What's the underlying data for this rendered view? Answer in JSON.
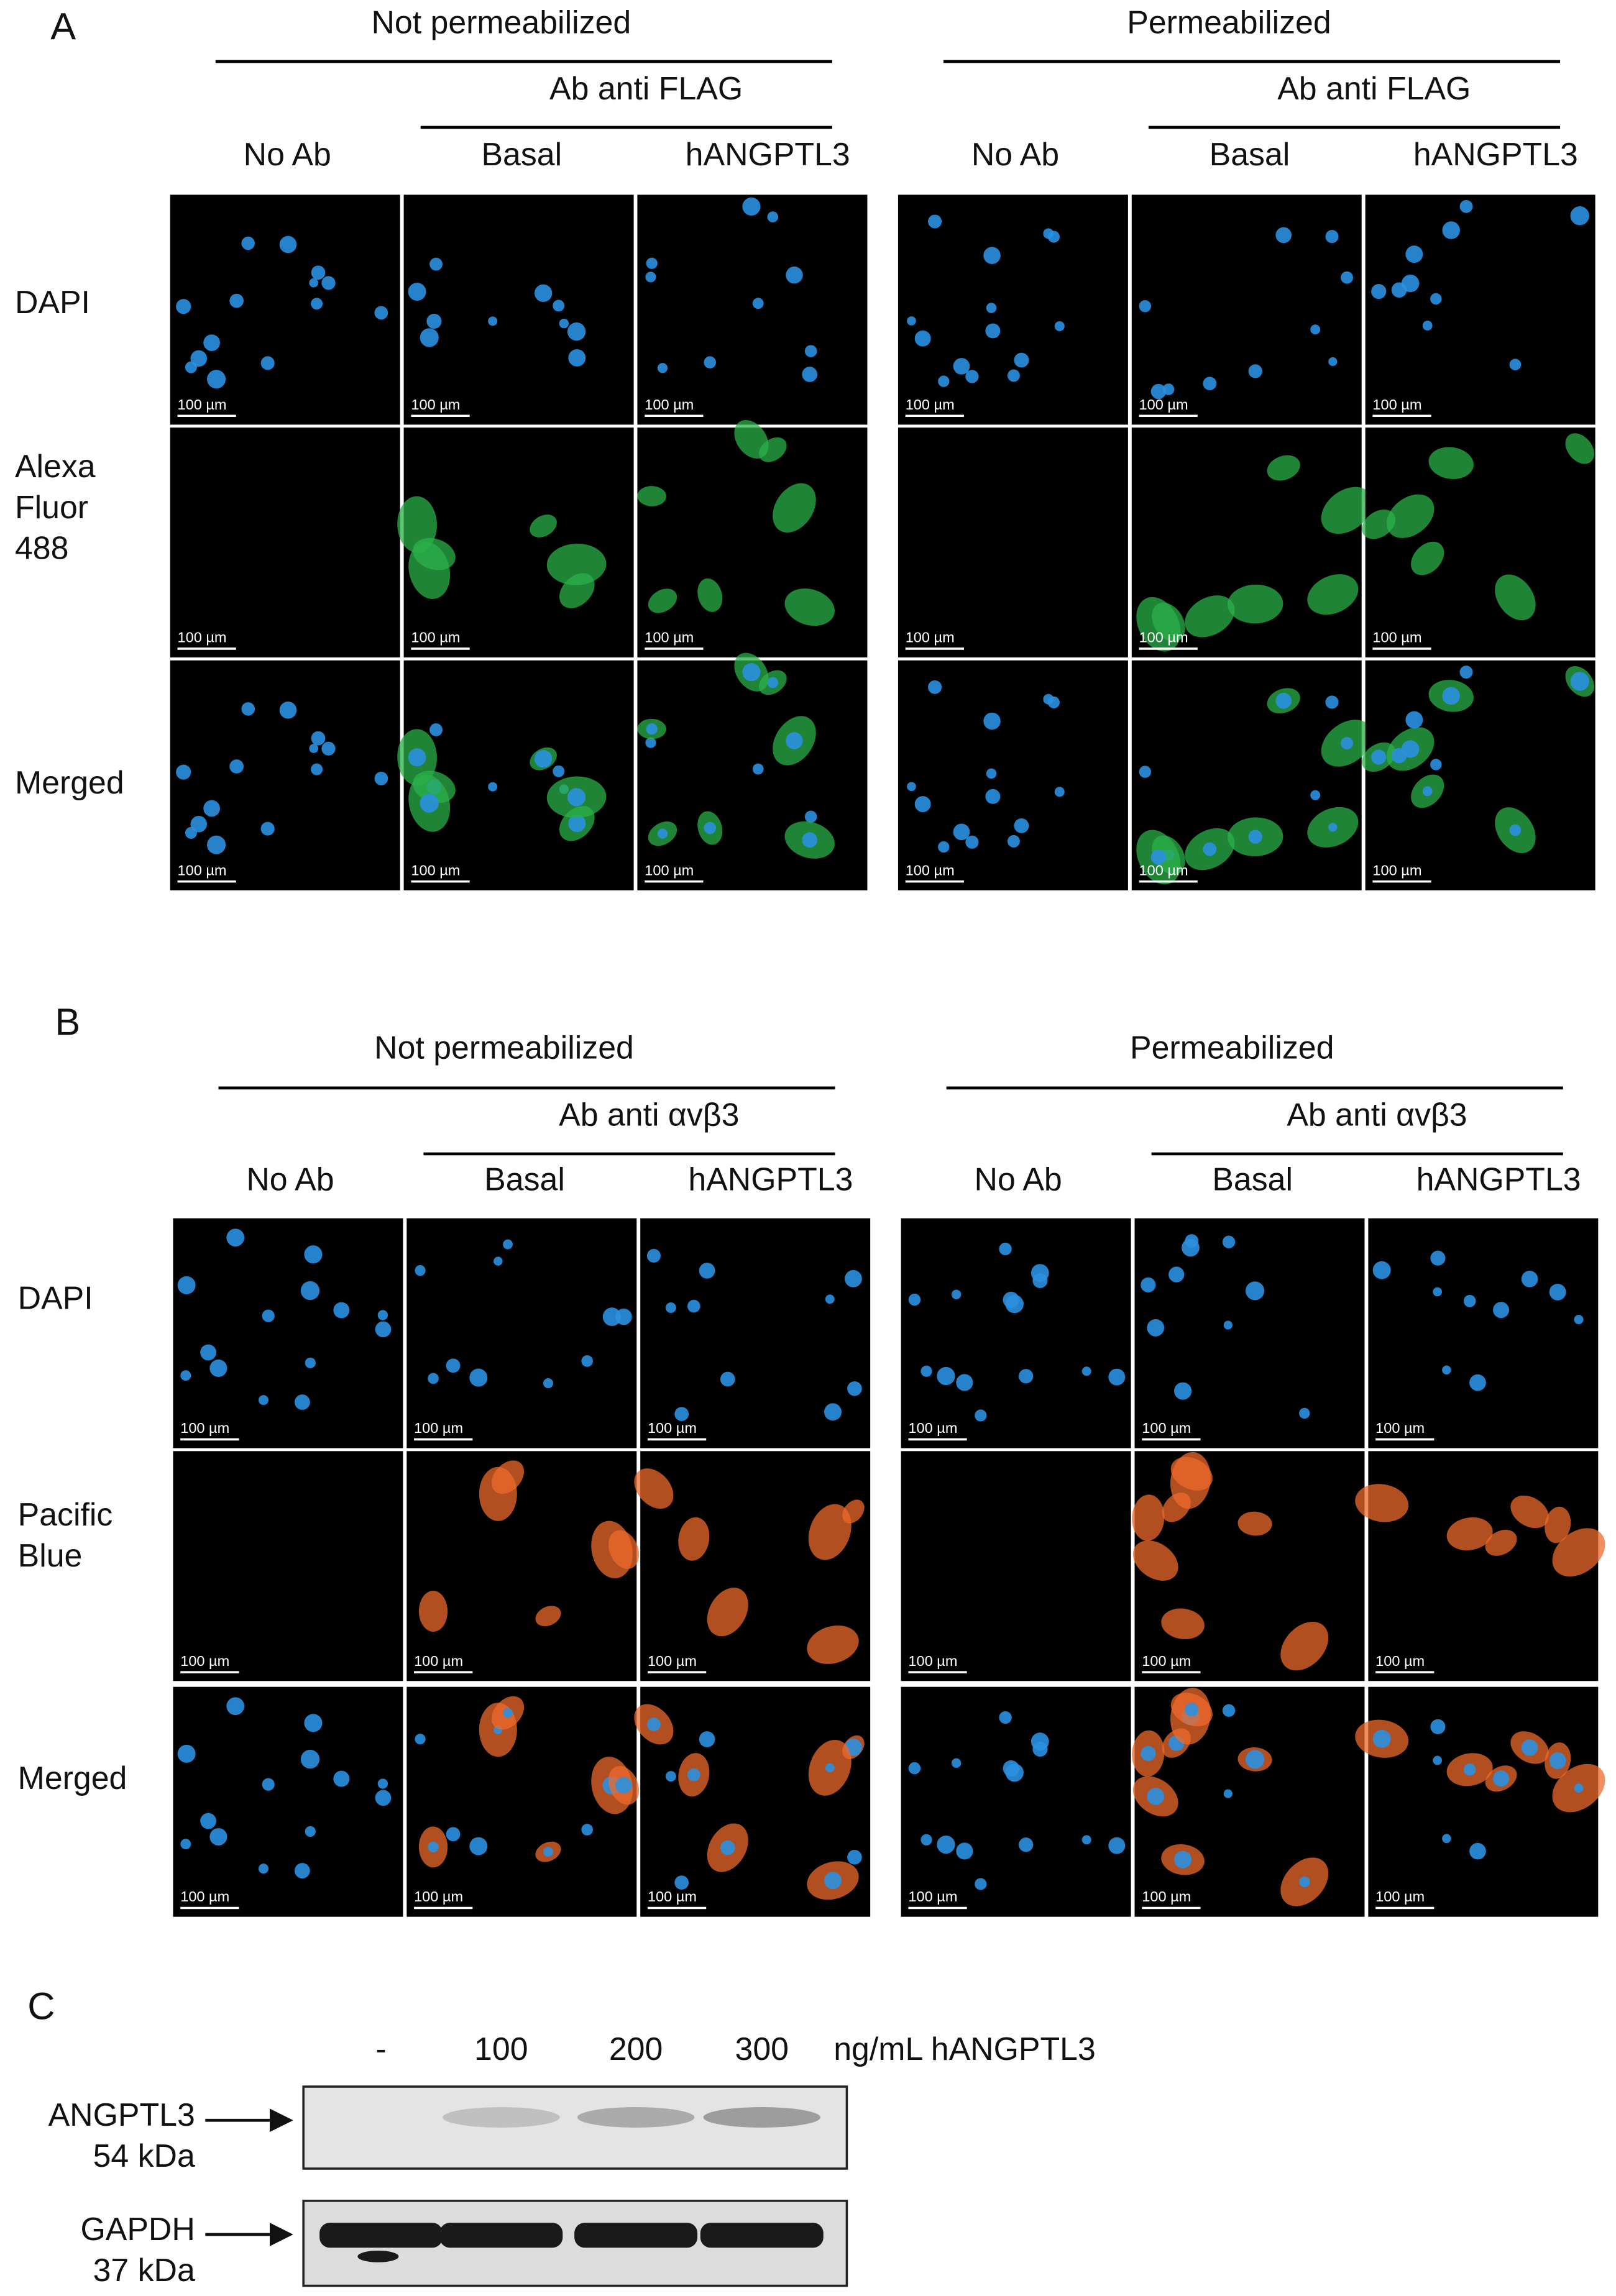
{
  "panels": [
    {
      "label": "A",
      "groups": [
        {
          "header": "Not permeabilized",
          "antibody": "Ab anti FLAG",
          "columns": [
            "No Ab",
            "Basal",
            "hANGPTL3"
          ]
        },
        {
          "header": "Permeabilized",
          "antibody": "Ab anti FLAG",
          "columns": [
            "No Ab",
            "Basal",
            "hANGPTL3"
          ]
        }
      ],
      "rows": [
        [
          "DAPI"
        ],
        [
          "Alexa",
          "Fluor",
          "488"
        ],
        [
          "Merged"
        ]
      ]
    },
    {
      "label": "B",
      "groups": [
        {
          "header": "Not permeabilized",
          "antibody": "Ab anti αvβ3",
          "columns": [
            "No Ab",
            "Basal",
            "hANGPTL3"
          ]
        },
        {
          "header": "Permeabilized",
          "antibody": "Ab anti αvβ3",
          "columns": [
            "No Ab",
            "Basal",
            "hANGPTL3"
          ]
        }
      ],
      "rows": [
        [
          "DAPI"
        ],
        [
          "Pacific",
          "Blue"
        ],
        [
          "Merged"
        ]
      ]
    }
  ],
  "scale_bar": "100 µm",
  "blot": {
    "label": "C",
    "lanes": [
      "-",
      "100",
      "200",
      "300"
    ],
    "unit": "ng/mL hANGPTL3",
    "bands": [
      {
        "name": "ANGPTL3",
        "size": "54 kDa"
      },
      {
        "name": "GAPDH",
        "size": "37 kDa"
      }
    ]
  }
}
